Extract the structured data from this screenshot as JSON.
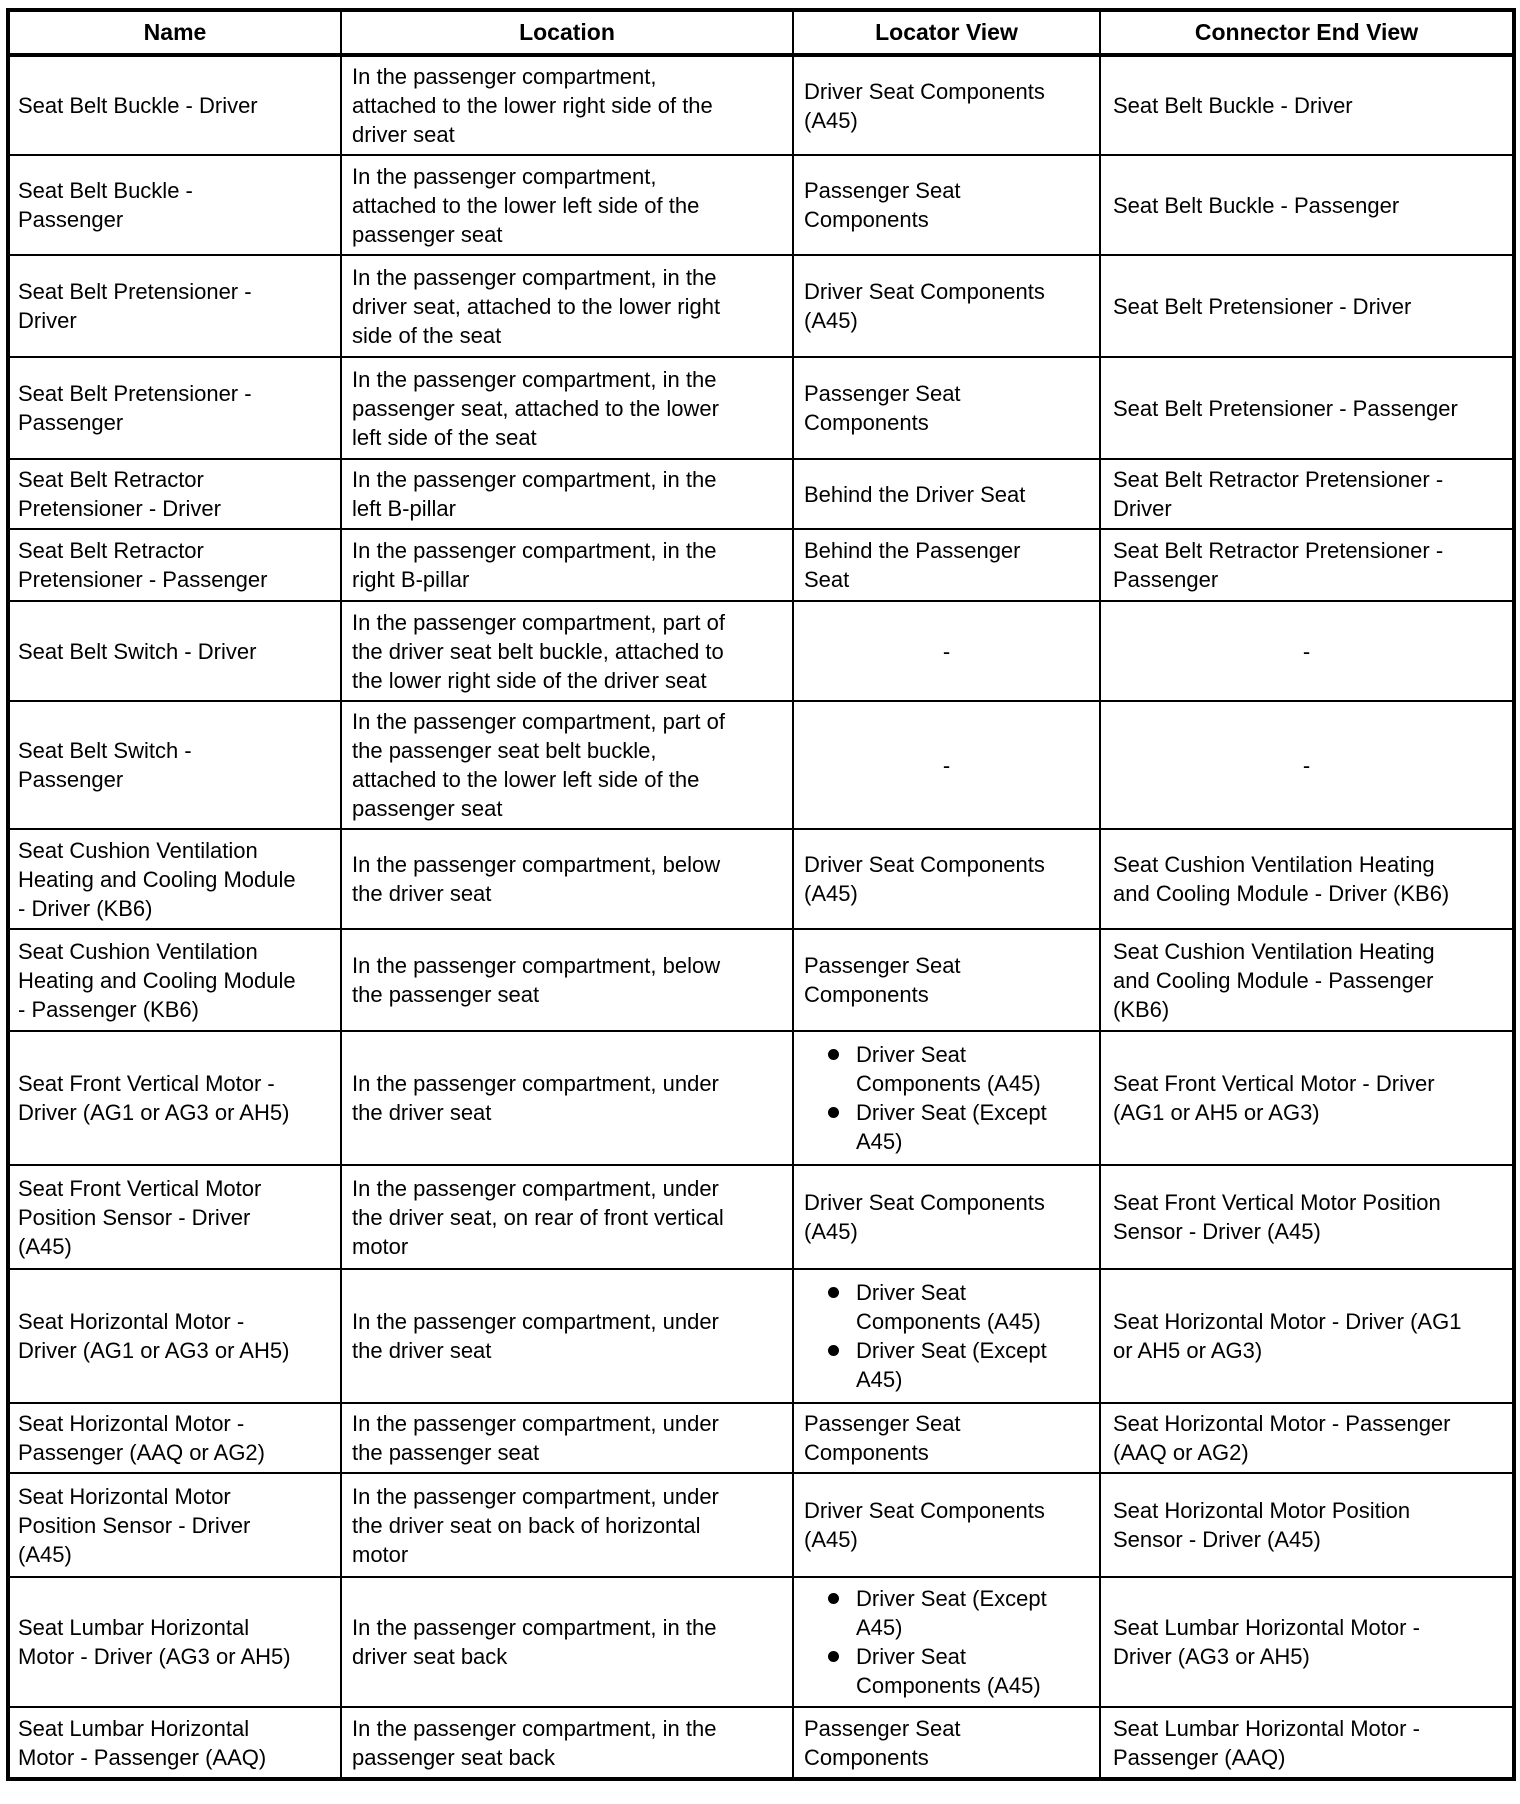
{
  "colors": {
    "border": "#000000",
    "text": "#000000",
    "background": "#ffffff"
  },
  "table": {
    "headers": [
      "Name",
      "Location",
      "Locator View",
      "Connector End View"
    ],
    "rows": [
      {
        "name": "Seat Belt Buckle - Driver",
        "location": "In the passenger compartment, attached to the lower right side of the driver seat",
        "locator": {
          "type": "text",
          "value": "Driver Seat Components (A45)"
        },
        "connector": "Seat Belt Buckle - Driver"
      },
      {
        "name": "Seat Belt Buckle - Passenger",
        "location": "In the passenger compartment, attached to the lower left side of the passenger seat",
        "locator": {
          "type": "text",
          "value": "Passenger Seat Components"
        },
        "connector": "Seat Belt Buckle - Passenger"
      },
      {
        "name": "Seat Belt Pretensioner - Driver",
        "location": "In the passenger compartment, in the driver seat, attached to the lower right side of the seat",
        "locator": {
          "type": "text",
          "value": "Driver Seat Components (A45)"
        },
        "connector": "Seat Belt Pretensioner - Driver"
      },
      {
        "name": "Seat Belt Pretensioner - Passenger",
        "location": "In the passenger compartment, in the passenger seat, attached to the lower left side of the seat",
        "locator": {
          "type": "text",
          "value": "Passenger Seat Components"
        },
        "connector": "Seat Belt Pretensioner - Passenger"
      },
      {
        "name": "Seat Belt Retractor Pretensioner - Driver",
        "location": "In the passenger compartment, in the left B-pillar",
        "locator": {
          "type": "text",
          "value": "Behind the Driver Seat"
        },
        "connector": "Seat Belt Retractor Pretensioner - Driver"
      },
      {
        "name": "Seat Belt Retractor Pretensioner - Passenger",
        "location": "In the passenger compartment, in the right B-pillar",
        "locator": {
          "type": "text",
          "value": "Behind the Passenger Seat"
        },
        "connector": "Seat Belt Retractor Pretensioner - Passenger"
      },
      {
        "name": "Seat Belt Switch - Driver",
        "location": "In the passenger compartment, part of the driver seat belt buckle, attached to the lower right side of the driver seat",
        "locator": {
          "type": "text",
          "value": "-"
        },
        "connector": "-"
      },
      {
        "name": "Seat Belt Switch - Passenger",
        "location": "In the passenger compartment, part of the passenger seat belt buckle, attached to the lower left side of the passenger seat",
        "locator": {
          "type": "text",
          "value": "-"
        },
        "connector": "-"
      },
      {
        "name": "Seat Cushion Ventilation Heating and Cooling Module - Driver (KB6)",
        "location": "In the passenger compartment, below the driver seat",
        "locator": {
          "type": "text",
          "value": "Driver Seat Components (A45)"
        },
        "connector": "Seat Cushion Ventilation Heating and Cooling Module - Driver (KB6)"
      },
      {
        "name": "Seat Cushion Ventilation Heating and Cooling Module - Passenger (KB6)",
        "location": "In the passenger compartment, below the passenger seat",
        "locator": {
          "type": "text",
          "value": "Passenger Seat Components"
        },
        "connector": "Seat Cushion Ventilation Heating and Cooling Module - Passenger (KB6)"
      },
      {
        "name": "Seat Front Vertical Motor - Driver (AG1 or AG3 or AH5)",
        "location": "In the passenger compartment, under the driver seat",
        "locator": {
          "type": "bullets",
          "items": [
            "Driver Seat Components (A45)",
            "Driver Seat (Except A45)"
          ]
        },
        "connector": "Seat Front Vertical Motor - Driver (AG1 or AH5 or AG3)"
      },
      {
        "name": "Seat Front Vertical Motor Position Sensor - Driver (A45)",
        "location": "In the passenger compartment, under the driver seat, on rear of front vertical motor",
        "locator": {
          "type": "text",
          "value": "Driver Seat Components (A45)"
        },
        "connector": "Seat Front Vertical Motor Position Sensor - Driver (A45)"
      },
      {
        "name": "Seat Horizontal Motor - Driver (AG1 or AG3 or AH5)",
        "location": "In the passenger compartment, under the driver seat",
        "locator": {
          "type": "bullets",
          "items": [
            "Driver Seat Components (A45)",
            "Driver Seat (Except A45)"
          ]
        },
        "connector": "Seat Horizontal Motor - Driver (AG1 or AH5 or AG3)"
      },
      {
        "name": "Seat Horizontal Motor - Passenger (AAQ or AG2)",
        "location": "In the passenger compartment, under the passenger seat",
        "locator": {
          "type": "text",
          "value": "Passenger Seat Components"
        },
        "connector": "Seat Horizontal Motor - Passenger (AAQ or AG2)"
      },
      {
        "name": "Seat Horizontal Motor Position Sensor - Driver (A45)",
        "location": "In the passenger compartment, under the driver seat on back of horizontal motor",
        "locator": {
          "type": "text",
          "value": "Driver Seat Components (A45)"
        },
        "connector": "Seat Horizontal Motor Position Sensor - Driver (A45)"
      },
      {
        "name": "Seat Lumbar Horizontal Motor - Driver (AG3 or AH5)",
        "location": "In the passenger compartment, in the driver seat back",
        "locator": {
          "type": "bullets",
          "items": [
            "Driver Seat (Except A45)",
            "Driver Seat Components (A45)"
          ]
        },
        "connector": "Seat Lumbar Horizontal Motor - Driver (AG3 or AH5)"
      },
      {
        "name": "Seat Lumbar Horizontal Motor - Passenger (AAQ)",
        "location": "In the passenger compartment, in the passenger seat back",
        "locator": {
          "type": "text",
          "value": "Passenger Seat Components"
        },
        "connector": "Seat Lumbar Horizontal Motor - Passenger (AAQ)"
      }
    ]
  }
}
